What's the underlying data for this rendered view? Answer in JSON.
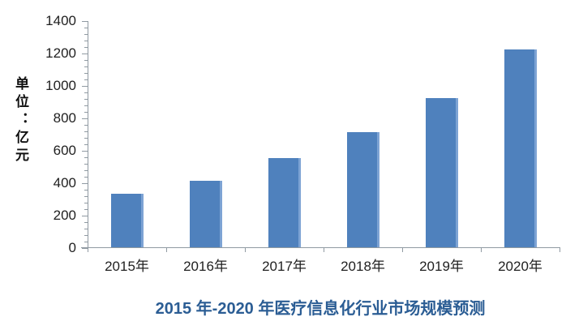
{
  "chart_data": {
    "type": "bar",
    "title": "2015 年-2020 年医疗信息化行业市场规模预测",
    "ylabel": "单位：亿元",
    "xlabel": "",
    "categories": [
      "2015年",
      "2016年",
      "2017年",
      "2018年",
      "2019年",
      "2020年"
    ],
    "values": [
      330,
      410,
      550,
      710,
      920,
      1220
    ],
    "y_ticks": [
      0,
      200,
      400,
      600,
      800,
      1000,
      1200,
      1400
    ],
    "y_minor_step": 40,
    "ylim": [
      0,
      1400
    ],
    "grid": false,
    "legend": false,
    "colors": {
      "bar": "#4f81bd",
      "bar_edge_highlight": "#7da3d4",
      "axis": "#909aa2",
      "tick_text": "#1f1f1f",
      "title": "#2b5d94"
    }
  }
}
